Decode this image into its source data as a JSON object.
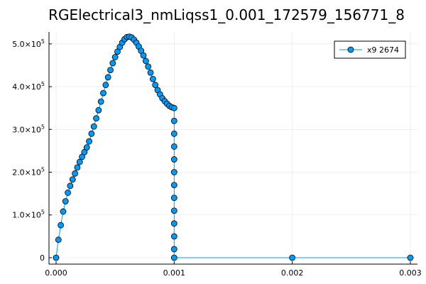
{
  "chart_data": {
    "type": "scatter",
    "title": "RGElectrical3_nmLiqss1_0.001_172579_156771_8",
    "xlabel": "",
    "ylabel": "",
    "xlim": [
      -6e-05,
      0.00306
    ],
    "ylim": [
      -15000,
      528000
    ],
    "grid": true,
    "legend_position": "top-right",
    "x_ticks": [
      {
        "value": 0.0,
        "label": "0.000"
      },
      {
        "value": 0.001,
        "label": "0.001"
      },
      {
        "value": 0.002,
        "label": "0.002"
      },
      {
        "value": 0.003,
        "label": "0.003"
      }
    ],
    "y_ticks": [
      {
        "value": 0,
        "label": "0"
      },
      {
        "value": 100000,
        "mantissa": "1.0",
        "base": "×10",
        "exp": "5"
      },
      {
        "value": 200000,
        "mantissa": "2.0",
        "base": "×10",
        "exp": "5"
      },
      {
        "value": 300000,
        "mantissa": "3.0",
        "base": "×10",
        "exp": "5"
      },
      {
        "value": 400000,
        "mantissa": "4.0",
        "base": "×10",
        "exp": "5"
      },
      {
        "value": 500000,
        "mantissa": "5.0",
        "base": "×10",
        "exp": "5"
      }
    ],
    "series": [
      {
        "name": "x9 2674",
        "color": "#009af9",
        "marker": "circle",
        "x": [
          0.0,
          2e-05,
          4e-05,
          6e-05,
          8e-05,
          0.0001,
          0.00012,
          0.00014,
          0.00016,
          0.00018,
          0.0002,
          0.00022,
          0.00024,
          0.00026,
          0.00028,
          0.0003,
          0.00032,
          0.00034,
          0.00036,
          0.00038,
          0.0004,
          0.00042,
          0.00044,
          0.00046,
          0.00048,
          0.0005,
          0.00052,
          0.00054,
          0.00056,
          0.00058,
          0.0006,
          0.00062,
          0.00064,
          0.00066,
          0.00068,
          0.0007,
          0.00072,
          0.00074,
          0.00076,
          0.00078,
          0.0008,
          0.00082,
          0.00084,
          0.00086,
          0.00088,
          0.0009,
          0.00092,
          0.00094,
          0.00096,
          0.00098,
          0.001,
          0.001,
          0.001,
          0.001,
          0.001,
          0.001,
          0.001,
          0.001,
          0.001,
          0.001,
          0.001,
          0.001,
          0.001,
          0.002,
          0.003
        ],
        "y": [
          0,
          42000,
          76000,
          108000,
          132000,
          152000,
          168000,
          183000,
          197000,
          211000,
          224000,
          236000,
          247000,
          258000,
          272000,
          290000,
          307000,
          326000,
          345000,
          365000,
          385000,
          404000,
          422000,
          439000,
          455000,
          469000,
          482000,
          493000,
          503000,
          511000,
          516000,
          517000,
          515000,
          510000,
          503000,
          494000,
          484000,
          473000,
          460000,
          447000,
          433000,
          418000,
          404000,
          392000,
          382000,
          373000,
          366000,
          360000,
          355000,
          352000,
          350000,
          320000,
          290000,
          260000,
          230000,
          200000,
          170000,
          140000,
          110000,
          80000,
          50000,
          20000,
          0,
          0,
          0
        ]
      }
    ]
  }
}
